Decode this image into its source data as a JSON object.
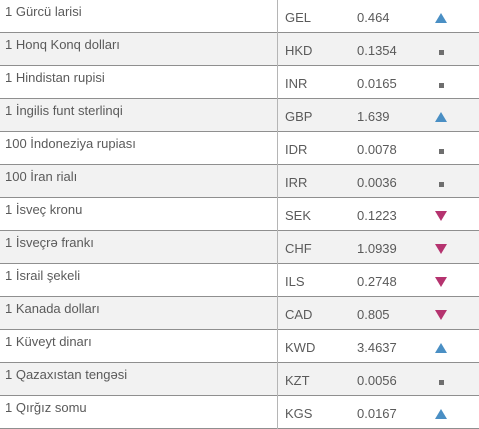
{
  "rates": [
    {
      "name": "1 Gürcü larisi",
      "code": "GEL",
      "rate": "0.464",
      "trend": "up",
      "trend_icon": "triangle-up-icon"
    },
    {
      "name": "1 Honq Konq dolları",
      "code": "HKD",
      "rate": "0.1354",
      "trend": "same",
      "trend_icon": "square-icon"
    },
    {
      "name": "1 Hindistan rupisi",
      "code": "INR",
      "rate": "0.0165",
      "trend": "same",
      "trend_icon": "square-icon"
    },
    {
      "name": "1 İngilis funt sterlinqi",
      "code": "GBP",
      "rate": "1.639",
      "trend": "up",
      "trend_icon": "triangle-up-icon"
    },
    {
      "name": "100 İndoneziya rupiası",
      "code": "IDR",
      "rate": "0.0078",
      "trend": "same",
      "trend_icon": "square-icon"
    },
    {
      "name": "100 İran rialı",
      "code": "IRR",
      "rate": "0.0036",
      "trend": "same",
      "trend_icon": "square-icon"
    },
    {
      "name": "1 İsveç kronu",
      "code": "SEK",
      "rate": "0.1223",
      "trend": "down",
      "trend_icon": "triangle-down-icon"
    },
    {
      "name": "1 İsveçrə frankı",
      "code": "CHF",
      "rate": "1.0939",
      "trend": "down",
      "trend_icon": "triangle-down-icon"
    },
    {
      "name": "1 İsrail şekeli",
      "code": "ILS",
      "rate": "0.2748",
      "trend": "down",
      "trend_icon": "triangle-down-icon"
    },
    {
      "name": "1 Kanada dolları",
      "code": "CAD",
      "rate": "0.805",
      "trend": "down",
      "trend_icon": "triangle-down-icon"
    },
    {
      "name": "1 Küveyt dinarı",
      "code": "KWD",
      "rate": "3.4637",
      "trend": "up",
      "trend_icon": "triangle-up-icon"
    },
    {
      "name": "1 Qazaxıstan tengəsi",
      "code": "KZT",
      "rate": "0.0056",
      "trend": "same",
      "trend_icon": "square-icon"
    },
    {
      "name": "1 Qırğız somu",
      "code": "KGS",
      "rate": "0.0167",
      "trend": "up",
      "trend_icon": "triangle-up-icon"
    }
  ],
  "colors": {
    "up": "#4a8fc4",
    "down": "#b5336f",
    "same": "#6e6e6e",
    "row_alt": "#f2f2f2",
    "border": "#8f8f8f"
  }
}
